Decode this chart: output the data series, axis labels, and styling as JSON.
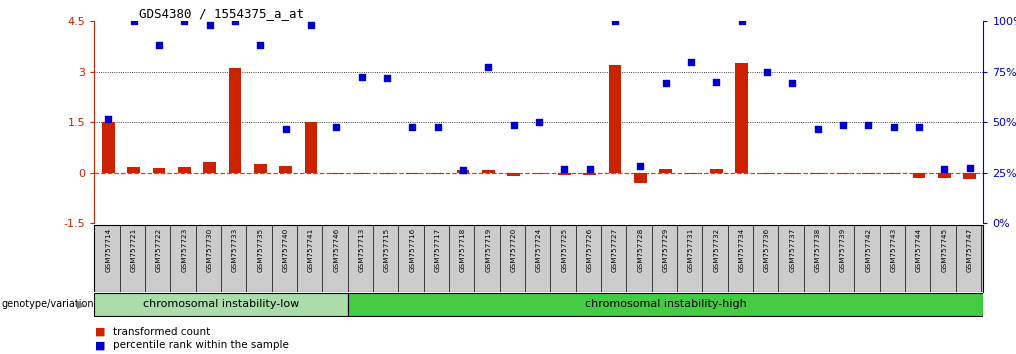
{
  "title": "GDS4380 / 1554375_a_at",
  "samples": [
    "GSM757714",
    "GSM757721",
    "GSM757722",
    "GSM757723",
    "GSM757730",
    "GSM757733",
    "GSM757735",
    "GSM757740",
    "GSM757741",
    "GSM757746",
    "GSM757713",
    "GSM757715",
    "GSM757716",
    "GSM757717",
    "GSM757718",
    "GSM757719",
    "GSM757720",
    "GSM757724",
    "GSM757725",
    "GSM757726",
    "GSM757727",
    "GSM757728",
    "GSM757729",
    "GSM757731",
    "GSM757732",
    "GSM757734",
    "GSM757736",
    "GSM757737",
    "GSM757738",
    "GSM757739",
    "GSM757742",
    "GSM757743",
    "GSM757744",
    "GSM757745",
    "GSM757747"
  ],
  "bar_values": [
    1.5,
    0.18,
    0.15,
    0.18,
    0.3,
    3.1,
    0.25,
    0.2,
    1.5,
    -0.05,
    -0.05,
    -0.05,
    -0.05,
    -0.05,
    0.07,
    0.07,
    -0.1,
    -0.05,
    -0.08,
    -0.08,
    3.2,
    -0.3,
    0.12,
    -0.05,
    0.1,
    3.25,
    -0.05,
    -0.05,
    -0.05,
    -0.05,
    -0.05,
    -0.05,
    -0.15,
    -0.15,
    -0.2
  ],
  "dot_values": [
    1.6,
    4.5,
    3.8,
    4.5,
    4.4,
    4.5,
    3.8,
    1.3,
    4.4,
    1.35,
    2.85,
    2.8,
    1.35,
    1.35,
    0.07,
    3.15,
    1.4,
    1.5,
    0.1,
    0.1,
    4.5,
    0.2,
    2.65,
    3.3,
    2.7,
    4.5,
    3.0,
    2.65,
    1.3,
    1.4,
    1.4,
    1.35,
    1.35,
    0.1,
    0.15
  ],
  "group1_count": 10,
  "group2_count": 25,
  "group1_label": "chromosomal instability-low",
  "group2_label": "chromosomal instability-high",
  "genotype_label": "genotype/variation",
  "ylim_left": [
    -1.5,
    4.5
  ],
  "ylim_right": [
    0,
    100
  ],
  "yticks_left": [
    -1.5,
    0.0,
    1.5,
    3.0,
    4.5
  ],
  "yticks_right": [
    0,
    25,
    50,
    75,
    100
  ],
  "bar_color": "#cc2200",
  "dot_color": "#0000cc",
  "group1_color": "#aaddaa",
  "group2_color": "#44cc44",
  "bg_color": "#cccccc",
  "legend_bar": "transformed count",
  "legend_dot": "percentile rank within the sample"
}
